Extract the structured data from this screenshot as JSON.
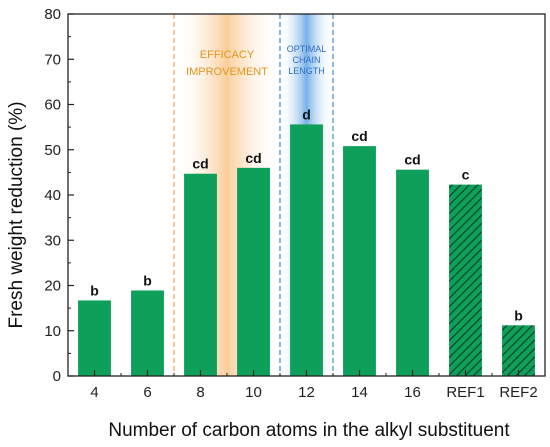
{
  "chart_data": {
    "type": "bar",
    "categories": [
      "4",
      "6",
      "8",
      "10",
      "12",
      "14",
      "16",
      "REF1",
      "REF2"
    ],
    "values": [
      16.7,
      18.9,
      44.7,
      46.0,
      55.6,
      50.8,
      45.6,
      42.3,
      11.2
    ],
    "letters": [
      "b",
      "b",
      "cd",
      "cd",
      "d",
      "cd",
      "cd",
      "c",
      "b"
    ],
    "hatched": [
      false,
      false,
      false,
      false,
      false,
      false,
      false,
      true,
      true
    ],
    "xlabel": "Number of carbon atoms in the alkyl substituent",
    "ylabel": "Fresh weight reduction (%)",
    "ylim": [
      0,
      80
    ],
    "yticks": [
      0,
      10,
      20,
      30,
      40,
      50,
      60,
      70,
      80
    ],
    "grid": false,
    "bar_color": "#0ea05a",
    "bands": [
      {
        "from_category": "8",
        "to_category": "10",
        "lines": [
          "EFFICACY",
          "IMPROVEMENT"
        ],
        "color": "#f6a546",
        "text_color": "#e2951f"
      },
      {
        "from_category": "12",
        "to_category": "12",
        "lines": [
          "OPTIMAL",
          "CHAIN",
          "LENGTH"
        ],
        "color": "#3a8fe0",
        "text_color": "#2f6fc6"
      }
    ]
  }
}
